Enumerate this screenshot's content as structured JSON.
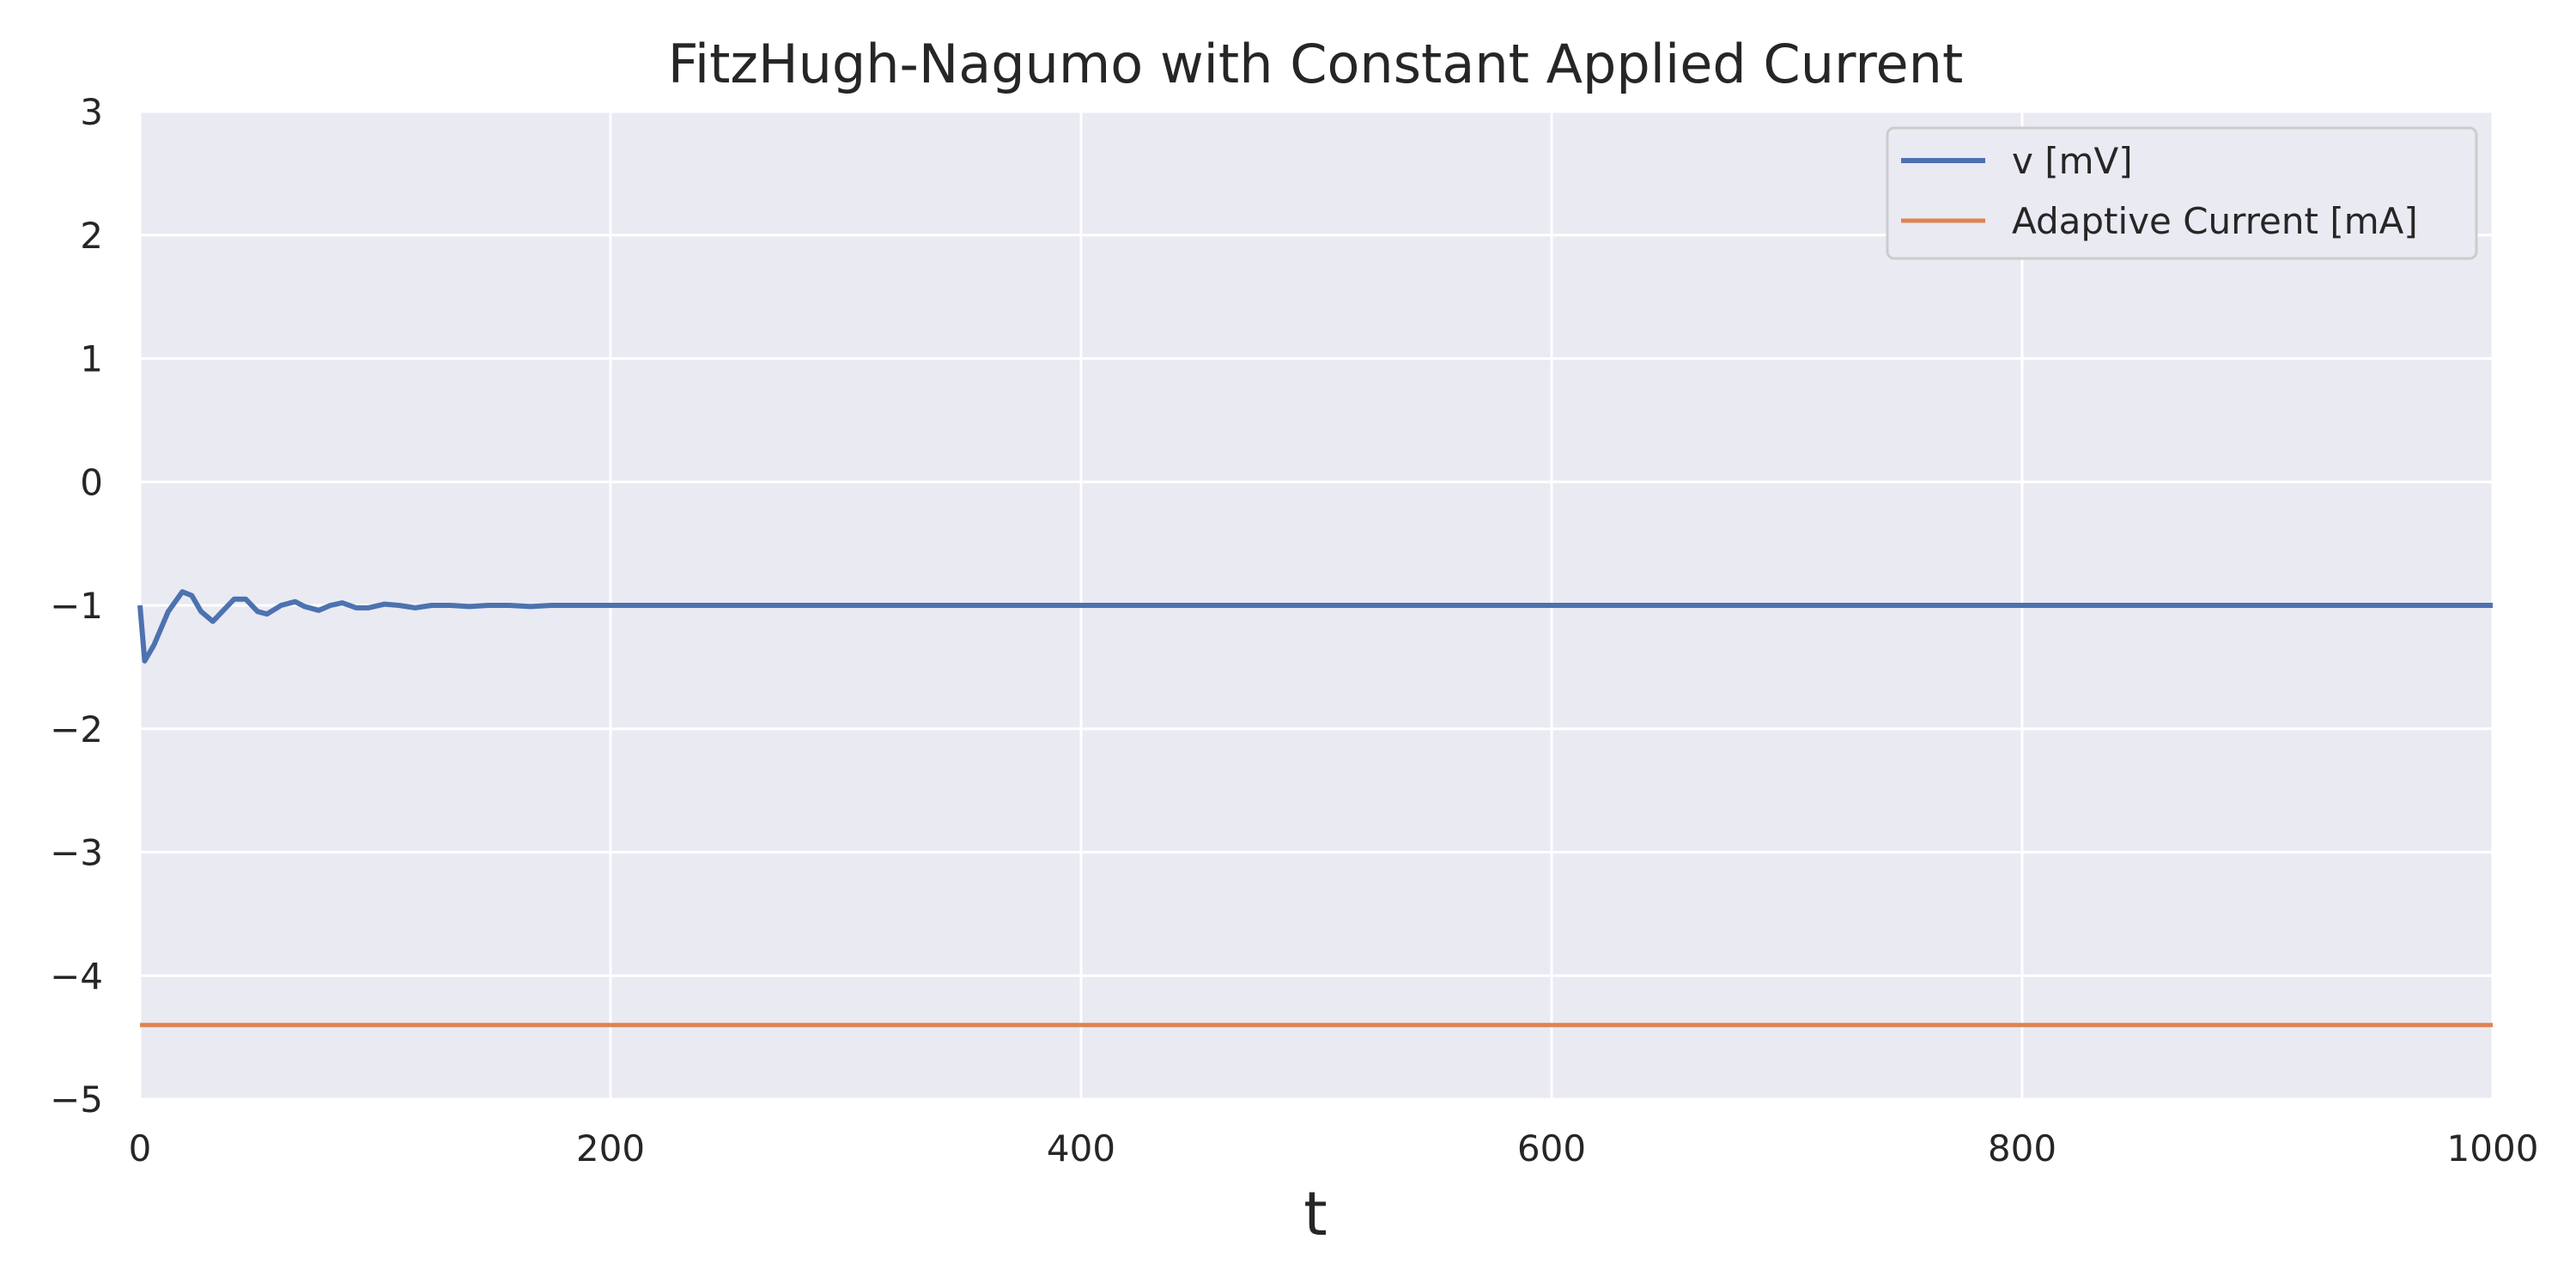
{
  "chart_data": {
    "type": "line",
    "title": "FitzHugh-Nagumo with Constant Applied Current",
    "xlabel": "t",
    "ylabel": "",
    "xlim": [
      0,
      1000
    ],
    "ylim": [
      -5,
      3
    ],
    "xticks": [
      0,
      200,
      400,
      600,
      800,
      1000
    ],
    "yticks": [
      3,
      2,
      1,
      0,
      -1,
      -2,
      -3,
      -4,
      -5
    ],
    "ytick_labels": [
      "3",
      "2",
      "1",
      "0",
      "−1",
      "−2",
      "−3",
      "−4",
      "−5"
    ],
    "grid": true,
    "legend_position": "top-right",
    "background_color": "#eaeaf2",
    "grid_color": "#ffffff",
    "series": [
      {
        "name": "v [mV]",
        "color": "#4c72b0",
        "x": [
          0,
          2,
          6,
          12,
          18,
          22,
          26,
          31,
          36,
          40,
          45,
          50,
          54,
          60,
          66,
          70,
          76,
          81,
          86,
          92,
          97,
          104,
          110,
          117,
          124,
          132,
          140,
          148,
          157,
          166,
          175,
          185,
          200,
          230,
          300,
          500,
          700,
          1000
        ],
        "y": [
          -1.0,
          -1.45,
          -1.32,
          -1.05,
          -0.89,
          -0.92,
          -1.05,
          -1.13,
          -1.03,
          -0.95,
          -0.95,
          -1.05,
          -1.07,
          -1.0,
          -0.97,
          -1.01,
          -1.04,
          -1.0,
          -0.98,
          -1.02,
          -1.02,
          -0.99,
          -1.0,
          -1.02,
          -1.0,
          -1.0,
          -1.01,
          -1.0,
          -1.0,
          -1.01,
          -1.0,
          -1.0,
          -1.0,
          -1.0,
          -1.0,
          -1.0,
          -1.0,
          -1.0
        ]
      },
      {
        "name": "Adaptive Current [mA]",
        "color": "#dd8452",
        "x": [
          0,
          1000
        ],
        "y": [
          -4.4,
          -4.4
        ]
      }
    ]
  }
}
